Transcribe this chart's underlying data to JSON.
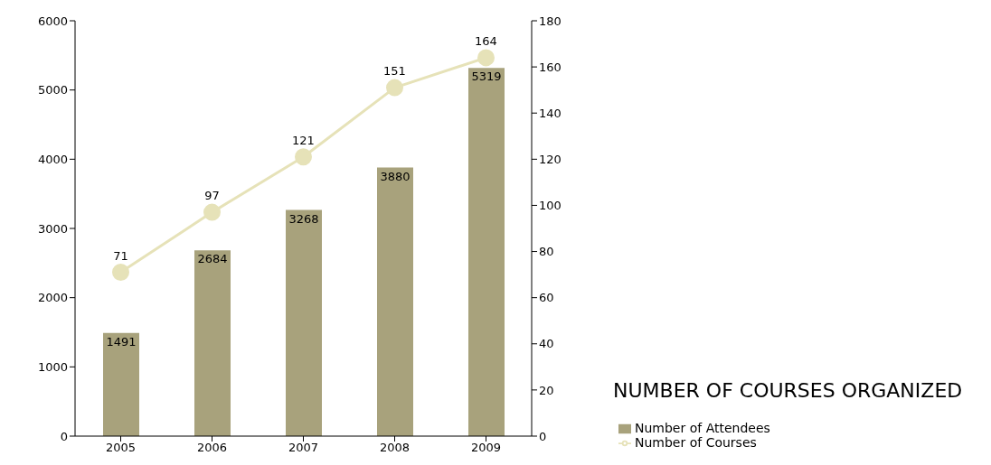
{
  "chart_data": {
    "type": "bar",
    "title": "NUMBER OF COURSES ORGANIZED",
    "categories": [
      "2005",
      "2006",
      "2007",
      "2008",
      "2009"
    ],
    "series": [
      {
        "name": "Number of Attendees",
        "color": "#a8a27c",
        "values": [
          1491,
          2684,
          3268,
          3880,
          5319
        ]
      },
      {
        "name": "Number of Courses",
        "type": "line",
        "axis": "y2",
        "marker": "circle",
        "color": "#e6e2b8",
        "values": [
          71,
          97,
          121,
          151,
          164
        ]
      }
    ],
    "ylim": [
      0,
      6000
    ],
    "yticks": [
      0,
      1000,
      2000,
      3000,
      4000,
      5000,
      6000
    ],
    "y2lim": [
      0,
      180
    ],
    "y2ticks": [
      0,
      20,
      40,
      60,
      80,
      100,
      120,
      140,
      160,
      180
    ],
    "data_labels": true,
    "legend": "bottom right"
  }
}
